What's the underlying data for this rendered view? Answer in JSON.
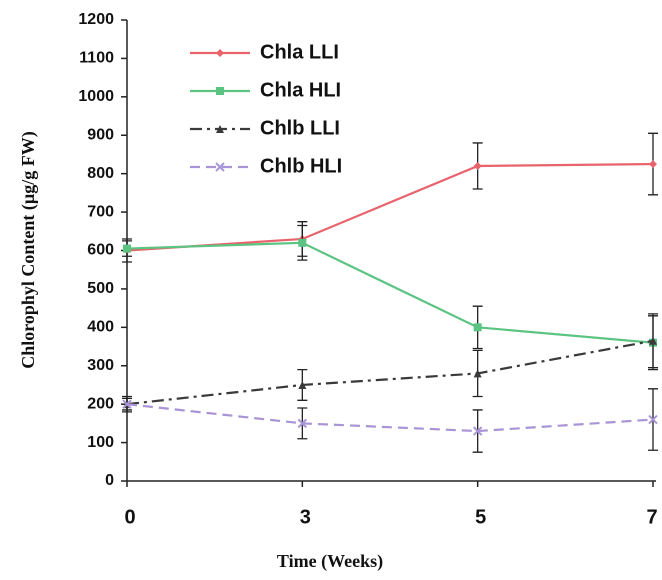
{
  "chart_data": {
    "type": "line",
    "categories": [
      "0",
      "3",
      "5",
      "7"
    ],
    "xlabel": "Time (Weeks)",
    "ylabel": "Chlorophyl Content (µg/g FW)",
    "ylim": [
      0,
      1200
    ],
    "yticks": [
      0,
      100,
      200,
      300,
      400,
      500,
      600,
      700,
      800,
      900,
      1000,
      1100,
      1200
    ],
    "legend": "upper left",
    "series": [
      {
        "name": "Chla LLI",
        "color": "#e8636b",
        "dash": "solid",
        "marker": "diamond",
        "values": [
          600,
          630,
          820,
          825
        ],
        "errors": [
          30,
          45,
          60,
          80
        ]
      },
      {
        "name": "Chla HLI",
        "color": "#5cc482",
        "dash": "solid",
        "marker": "square",
        "values": [
          605,
          620,
          400,
          360
        ],
        "errors": [
          20,
          45,
          55,
          70
        ]
      },
      {
        "name": "Chlb  LLI",
        "color": "#3a3a3a",
        "dash": "dashdot",
        "marker": "triangle",
        "values": [
          200,
          250,
          280,
          365
        ],
        "errors": [
          20,
          40,
          60,
          70
        ]
      },
      {
        "name": "Chlb HLI",
        "color": "#a994d6",
        "dash": "dashed",
        "marker": "x",
        "values": [
          200,
          150,
          130,
          160
        ],
        "errors": [
          15,
          40,
          55,
          80
        ]
      }
    ]
  }
}
